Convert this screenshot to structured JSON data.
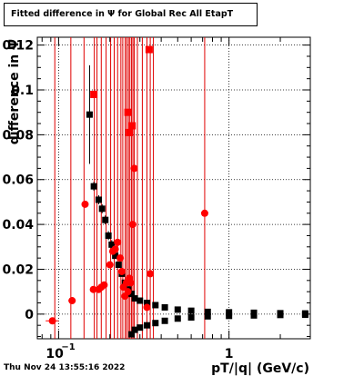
{
  "title": "Fitted difference in  Ψ  for Global Rec All EtapT",
  "timestamp": "Thu Nov 24 13:55:16 2022",
  "chart_data": {
    "type": "scatter",
    "title": "Fitted difference in  Ψ  for Global Rec All EtapT",
    "xlabel": "pT/|q| (GeV/c)",
    "ylabel": "difference in  Ψ",
    "x_scale": "log",
    "xlim": [
      0.075,
      3.0
    ],
    "ylim": [
      -0.011,
      0.1235
    ],
    "grid": true,
    "x_tick_labels": [
      {
        "value": 0.1,
        "label": "10",
        "exp": "−1"
      },
      {
        "value": 1,
        "label": "1"
      }
    ],
    "y_tick_labels": [
      {
        "value": 0,
        "label": "0"
      },
      {
        "value": 0.02,
        "label": "0.02"
      },
      {
        "value": 0.04,
        "label": "0.04"
      },
      {
        "value": 0.06,
        "label": "0.06"
      },
      {
        "value": 0.08,
        "label": "0.08"
      },
      {
        "value": 0.1,
        "label": "0.1"
      },
      {
        "value": 0.12,
        "label": "0.12"
      }
    ],
    "series": [
      {
        "color": "#000000",
        "marker": "square",
        "points": [
          [
            0.152,
            0.089
          ],
          [
            0.161,
            0.057
          ],
          [
            0.172,
            0.051
          ],
          [
            0.18,
            0.047
          ],
          [
            0.188,
            0.042
          ],
          [
            0.196,
            0.035
          ],
          [
            0.205,
            0.031
          ],
          [
            0.215,
            0.026
          ],
          [
            0.225,
            0.022
          ],
          [
            0.235,
            0.018
          ],
          [
            0.245,
            0.014
          ],
          [
            0.256,
            0.011
          ],
          [
            0.268,
            0.009
          ],
          [
            0.28,
            0.007
          ],
          [
            0.3,
            0.006
          ],
          [
            0.33,
            0.005
          ],
          [
            0.37,
            0.004
          ],
          [
            0.42,
            0.003
          ],
          [
            0.5,
            0.002
          ],
          [
            0.6,
            0.0015
          ],
          [
            0.75,
            0.001
          ],
          [
            1.0,
            0.0008
          ],
          [
            1.4,
            0.0006
          ],
          [
            2.0,
            0.0004
          ],
          [
            2.8,
            0.0003
          ]
        ],
        "y_errors": [
          0.022,
          0.002,
          0.002,
          0.002,
          0.002,
          0.002,
          0.002,
          0.001,
          0.001,
          0.001,
          0.001,
          0.001,
          0.001,
          0.001,
          0.001,
          0.001,
          0.001,
          0.001,
          0.001,
          0.001,
          0.001,
          0.001,
          0.001,
          0.001,
          0.001
        ]
      },
      {
        "color": "#000000",
        "marker": "square",
        "points": [
          [
            0.268,
            -0.009
          ],
          [
            0.28,
            -0.007
          ],
          [
            0.3,
            -0.006
          ],
          [
            0.33,
            -0.005
          ],
          [
            0.37,
            -0.004
          ],
          [
            0.42,
            -0.003
          ],
          [
            0.5,
            -0.002
          ],
          [
            0.6,
            -0.0015
          ],
          [
            0.75,
            -0.001
          ],
          [
            1.0,
            -0.0008
          ],
          [
            1.4,
            -0.0006
          ],
          [
            2.0,
            -0.0004
          ],
          [
            2.8,
            -0.0003
          ]
        ],
        "y_errors": [
          0.001,
          0.001,
          0.001,
          0.001,
          0.001,
          0.001,
          0.001,
          0.001,
          0.001,
          0.001,
          0.001,
          0.001,
          0.001
        ]
      },
      {
        "color": "#ff0000",
        "marker": "square",
        "points": [
          [
            0.161,
            0.098
          ],
          [
            0.255,
            0.09
          ],
          [
            0.26,
            0.081
          ],
          [
            0.27,
            0.084
          ],
          [
            0.34,
            0.118
          ]
        ]
      },
      {
        "color": "#ff0000",
        "marker": "circle",
        "points": [
          [
            0.092,
            -0.003
          ],
          [
            0.12,
            0.006
          ],
          [
            0.143,
            0.049
          ],
          [
            0.16,
            0.011
          ],
          [
            0.172,
            0.011
          ],
          [
            0.178,
            0.012
          ],
          [
            0.185,
            0.013
          ],
          [
            0.2,
            0.022
          ],
          [
            0.208,
            0.028
          ],
          [
            0.215,
            0.029
          ],
          [
            0.222,
            0.032
          ],
          [
            0.23,
            0.025
          ],
          [
            0.235,
            0.019
          ],
          [
            0.24,
            0.012
          ],
          [
            0.245,
            0.008
          ],
          [
            0.25,
            0.014
          ],
          [
            0.255,
            0.01
          ],
          [
            0.26,
            0.016
          ],
          [
            0.265,
            0.014
          ],
          [
            0.272,
            0.04
          ],
          [
            0.278,
            0.065
          ],
          [
            0.33,
            0.003
          ],
          [
            0.345,
            0.018
          ],
          [
            0.72,
            0.045
          ]
        ],
        "x_errors": [
          0.008,
          0.006,
          0,
          0,
          0,
          0,
          0,
          0,
          0,
          0,
          0,
          0,
          0,
          0,
          0,
          0,
          0,
          0,
          0,
          0,
          0,
          0,
          0,
          0
        ]
      }
    ],
    "red_vertical_lines_x": [
      0.095,
      0.118,
      0.141,
      0.162,
      0.168,
      0.178,
      0.19,
      0.202,
      0.212,
      0.222,
      0.232,
      0.238,
      0.246,
      0.251,
      0.257,
      0.262,
      0.268,
      0.273,
      0.278,
      0.29,
      0.31,
      0.33,
      0.345,
      0.36,
      0.72
    ]
  }
}
